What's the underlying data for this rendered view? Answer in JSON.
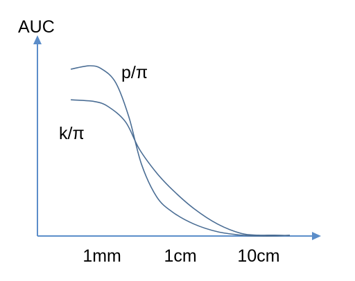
{
  "chart_data": {
    "type": "line",
    "title": "",
    "xlabel": "",
    "ylabel": "AUC",
    "x_scale": "log",
    "x_ticks": [
      {
        "label": "1mm",
        "value_mm": 1
      },
      {
        "label": "1cm",
        "value_mm": 10
      },
      {
        "label": "10cm",
        "value_mm": 100
      }
    ],
    "xlim_mm": [
      0.15,
      500
    ],
    "ylim": [
      0,
      1
    ],
    "y_ticks": [],
    "grid": false,
    "legend": "none",
    "colors": {
      "axis": "#5b8dc9",
      "series": "#4a6d94",
      "text": "#000000"
    },
    "series": [
      {
        "name": "p/π",
        "points": [
          [
            0.4,
            0.98
          ],
          [
            0.7,
            1.0
          ],
          [
            1.0,
            0.98
          ],
          [
            1.5,
            0.9
          ],
          [
            2.2,
            0.7
          ],
          [
            3.2,
            0.42
          ],
          [
            5,
            0.23
          ],
          [
            8,
            0.14
          ],
          [
            15,
            0.07
          ],
          [
            30,
            0.025
          ],
          [
            60,
            0.005
          ],
          [
            100,
            0.0
          ],
          [
            160,
            0.0
          ],
          [
            250,
            0.005
          ]
        ]
      },
      {
        "name": "k/π",
        "points": [
          [
            0.4,
            0.8
          ],
          [
            0.8,
            0.79
          ],
          [
            1.2,
            0.76
          ],
          [
            2.0,
            0.67
          ],
          [
            3.0,
            0.51
          ],
          [
            5,
            0.37
          ],
          [
            8,
            0.27
          ],
          [
            15,
            0.16
          ],
          [
            30,
            0.07
          ],
          [
            60,
            0.015
          ],
          [
            100,
            0.005
          ],
          [
            160,
            0.005
          ],
          [
            250,
            0.002
          ]
        ]
      }
    ]
  }
}
